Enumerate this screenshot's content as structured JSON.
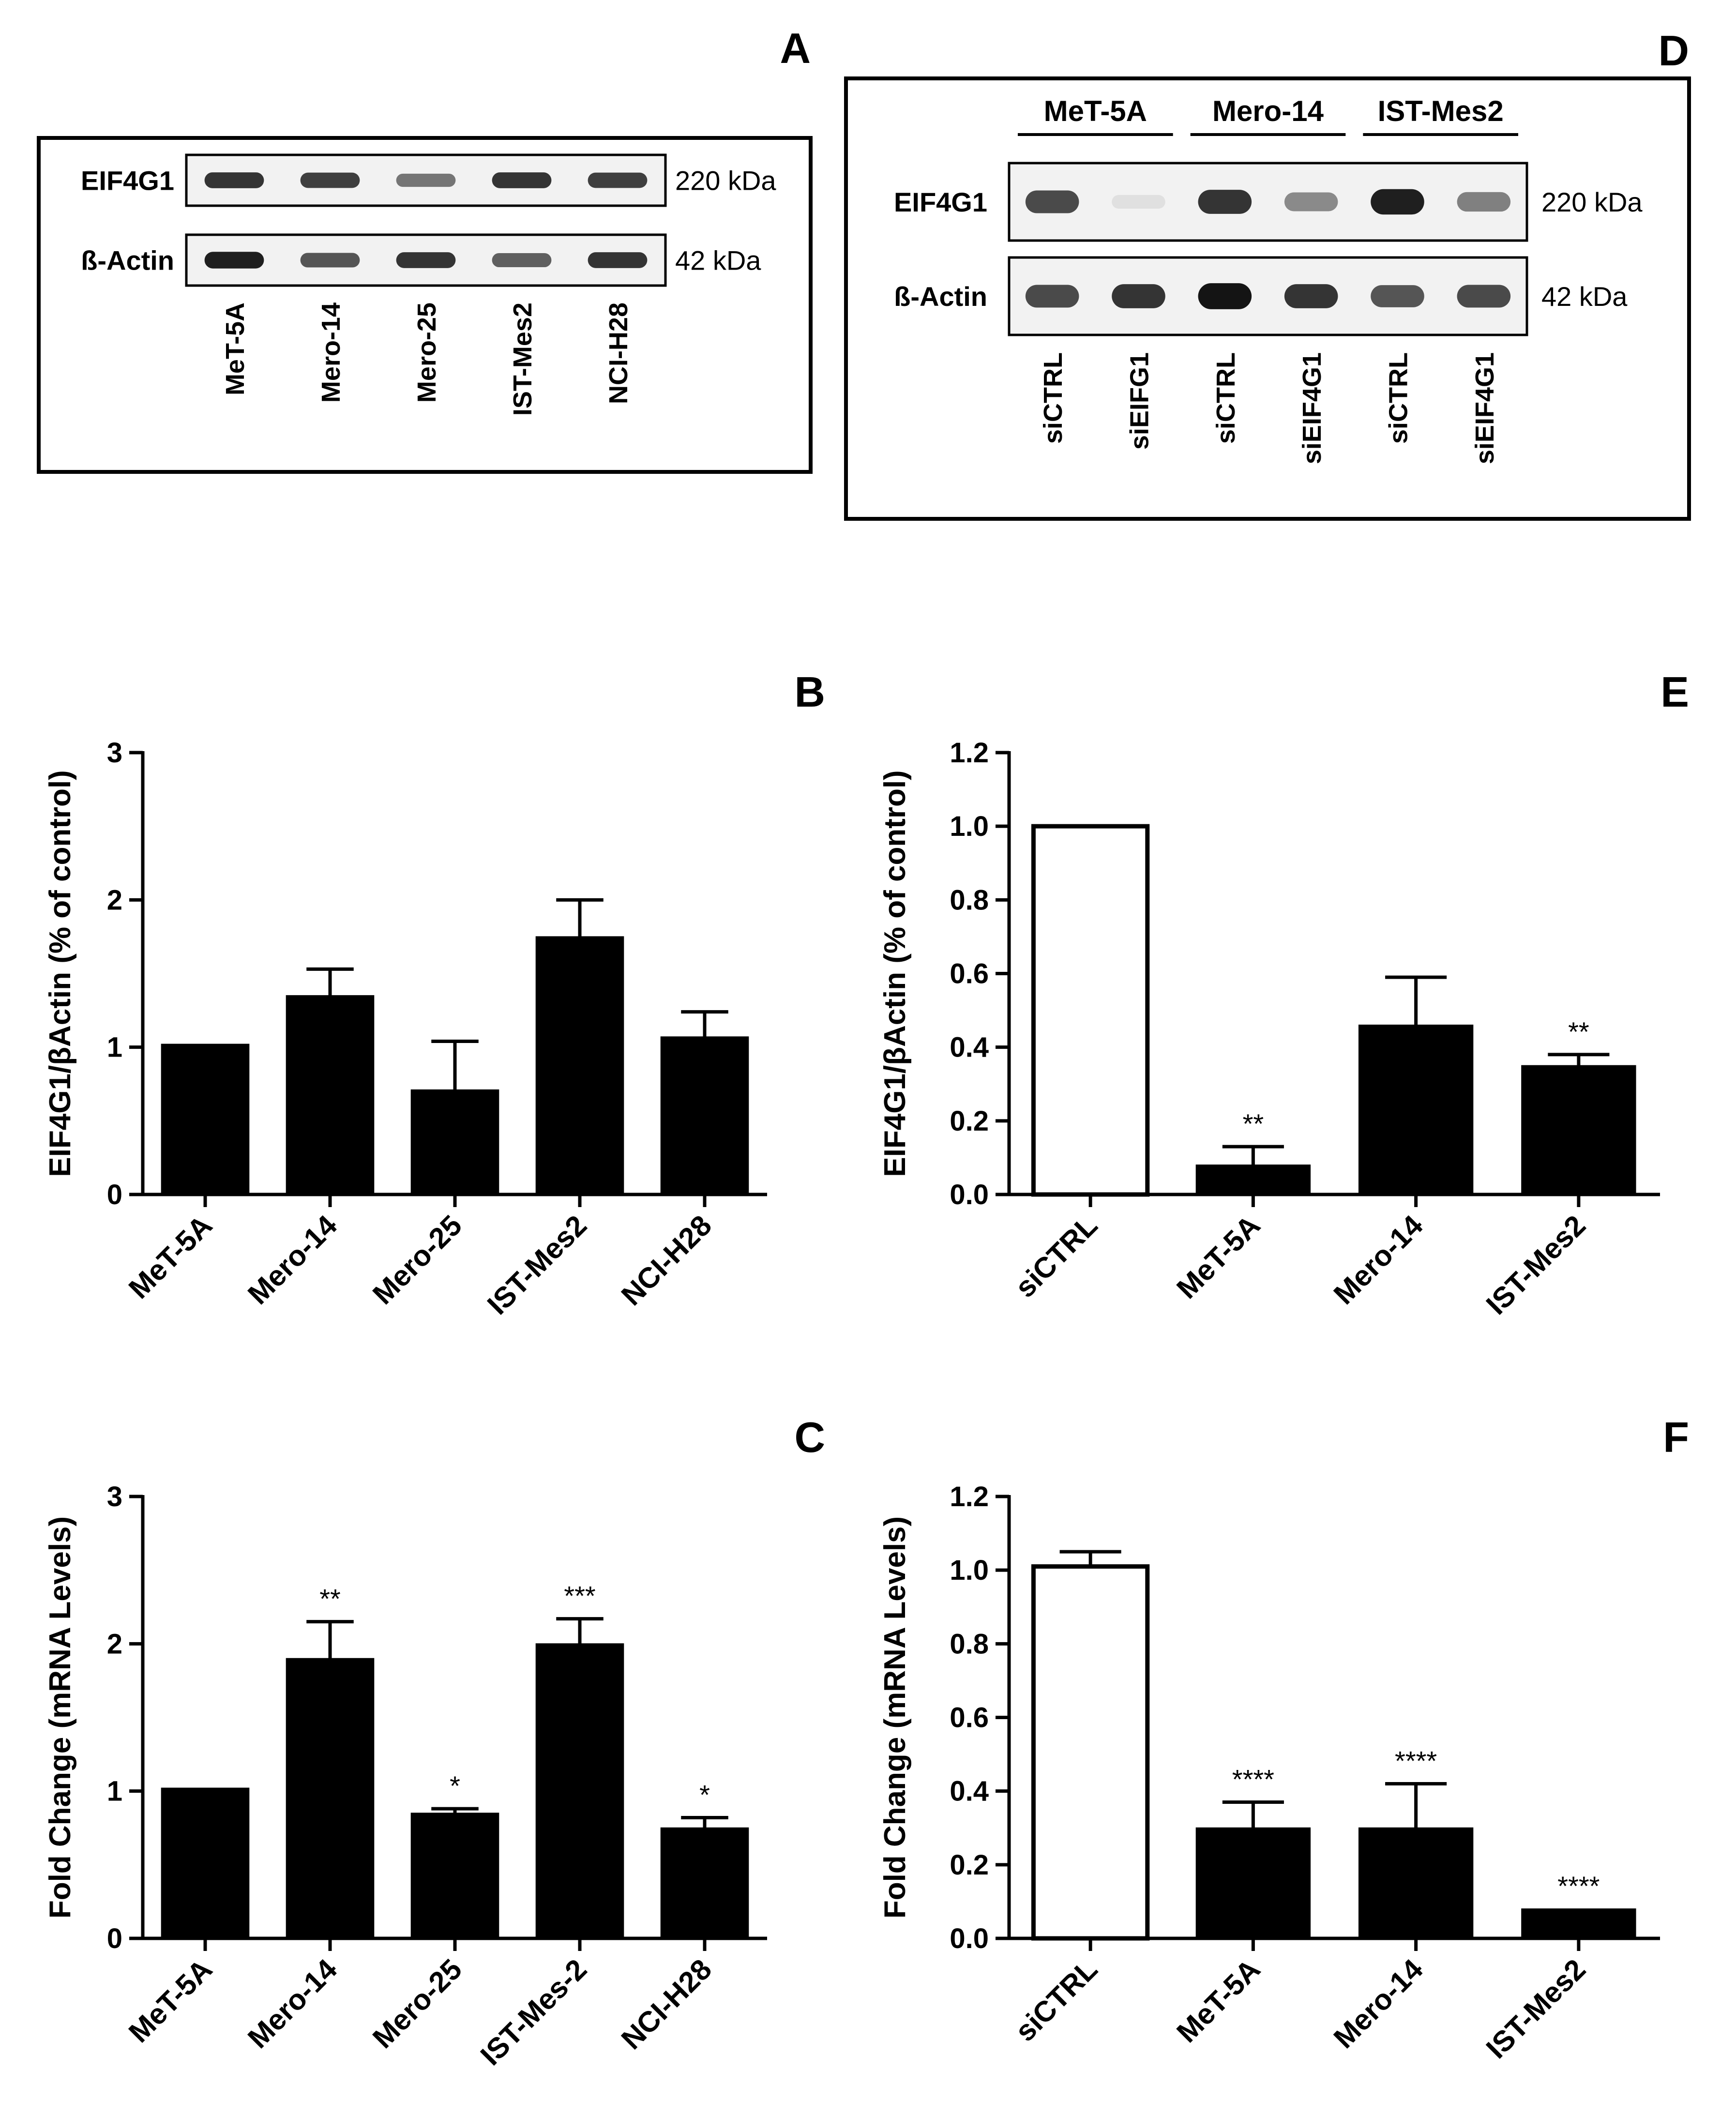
{
  "blots": {
    "A": {
      "letter": "A",
      "rows": [
        {
          "label": "EIF4G1",
          "kda": "220 kDa",
          "intensity": [
            0.85,
            0.8,
            0.55,
            0.85,
            0.8
          ]
        },
        {
          "label": "ß-Actin",
          "kda": "42 kDa",
          "intensity": [
            0.95,
            0.7,
            0.85,
            0.65,
            0.85
          ]
        }
      ],
      "lanes": [
        "MeT-5A",
        "Mero-14",
        "Mero-25",
        "IST-Mes2",
        "NCI-H28"
      ]
    },
    "D": {
      "letter": "D",
      "groups": [
        "MeT-5A",
        "Mero-14",
        "IST-Mes2"
      ],
      "rows": [
        {
          "label": "EIF4G1",
          "kda": "220 kDa",
          "intensity": [
            0.75,
            0.05,
            0.85,
            0.45,
            0.95,
            0.5
          ]
        },
        {
          "label": "ß-Actin",
          "kda": "42 kDa",
          "intensity": [
            0.75,
            0.85,
            1.0,
            0.85,
            0.7,
            0.75
          ]
        }
      ],
      "lanes": [
        "siCTRL",
        "siEIFG1",
        "siCTRL",
        "siEIF4G1",
        "siCTRL",
        "siEIF4G1"
      ]
    }
  },
  "chart_data": [
    {
      "id": "B",
      "letter": "B",
      "type": "bar",
      "categories": [
        "MeT-5A",
        "Mero-14",
        "Mero-25",
        "IST-Mes2",
        "NCI-H28"
      ],
      "values": [
        1.02,
        1.35,
        0.71,
        1.75,
        1.07
      ],
      "errors": [
        0,
        0.18,
        0.33,
        0.25,
        0.17
      ],
      "fills": [
        "#000000",
        "#000000",
        "#000000",
        "#000000",
        "#000000"
      ],
      "significance": [
        "",
        "",
        "",
        "",
        ""
      ],
      "ylabel": "EIF4G1/βActin (% of control)",
      "ylim": [
        0,
        3
      ],
      "yticks": [
        "0",
        "1",
        "2",
        "3"
      ],
      "ytick_values": [
        0,
        1,
        2,
        3
      ]
    },
    {
      "id": "E",
      "letter": "E",
      "type": "bar",
      "categories": [
        "siCTRL",
        "MeT-5A",
        "Mero-14",
        "IST-Mes2"
      ],
      "values": [
        1.0,
        0.08,
        0.46,
        0.35
      ],
      "errors": [
        0,
        0.05,
        0.13,
        0.03
      ],
      "fills": [
        "#ffffff",
        "#000000",
        "#000000",
        "#000000"
      ],
      "significance": [
        "",
        "**",
        "",
        "**"
      ],
      "ylabel": "EIF4G1/βActin (% of control)",
      "ylim": [
        0,
        1.2
      ],
      "yticks": [
        "0.0",
        "0.2",
        "0.4",
        "0.6",
        "0.8",
        "1.0",
        "1.2"
      ],
      "ytick_values": [
        0,
        0.2,
        0.4,
        0.6,
        0.8,
        1.0,
        1.2
      ]
    },
    {
      "id": "C",
      "letter": "C",
      "type": "bar",
      "categories": [
        "MeT-5A",
        "Mero-14",
        "Mero-25",
        "IST-Mes-2",
        "NCI-H28"
      ],
      "values": [
        1.02,
        1.9,
        0.85,
        2.0,
        0.75
      ],
      "errors": [
        0,
        0.25,
        0.03,
        0.17,
        0.07
      ],
      "fills": [
        "#000000",
        "#000000",
        "#000000",
        "#000000",
        "#000000"
      ],
      "significance": [
        "",
        "**",
        "*",
        "***",
        "*"
      ],
      "ylabel": "Fold Change (mRNA Levels)",
      "ylim": [
        0,
        3
      ],
      "yticks": [
        "0",
        "1",
        "2",
        "3"
      ],
      "ytick_values": [
        0,
        1,
        2,
        3
      ]
    },
    {
      "id": "F",
      "letter": "F",
      "type": "bar",
      "categories": [
        "siCTRL",
        "MeT-5A",
        "Mero-14",
        "IST-Mes2"
      ],
      "values": [
        1.01,
        0.3,
        0.3,
        0.08
      ],
      "errors": [
        0.04,
        0.07,
        0.12,
        0
      ],
      "fills": [
        "#ffffff",
        "#000000",
        "#000000",
        "#000000"
      ],
      "significance": [
        "",
        "****",
        "****",
        "****"
      ],
      "ylabel": "Fold Change (mRNA Levels)",
      "ylim": [
        0,
        1.2
      ],
      "yticks": [
        "0.0",
        "0.2",
        "0.4",
        "0.6",
        "0.8",
        "1.0",
        "1.2"
      ],
      "ytick_values": [
        0,
        0.2,
        0.4,
        0.6,
        0.8,
        1.0,
        1.2
      ]
    }
  ]
}
